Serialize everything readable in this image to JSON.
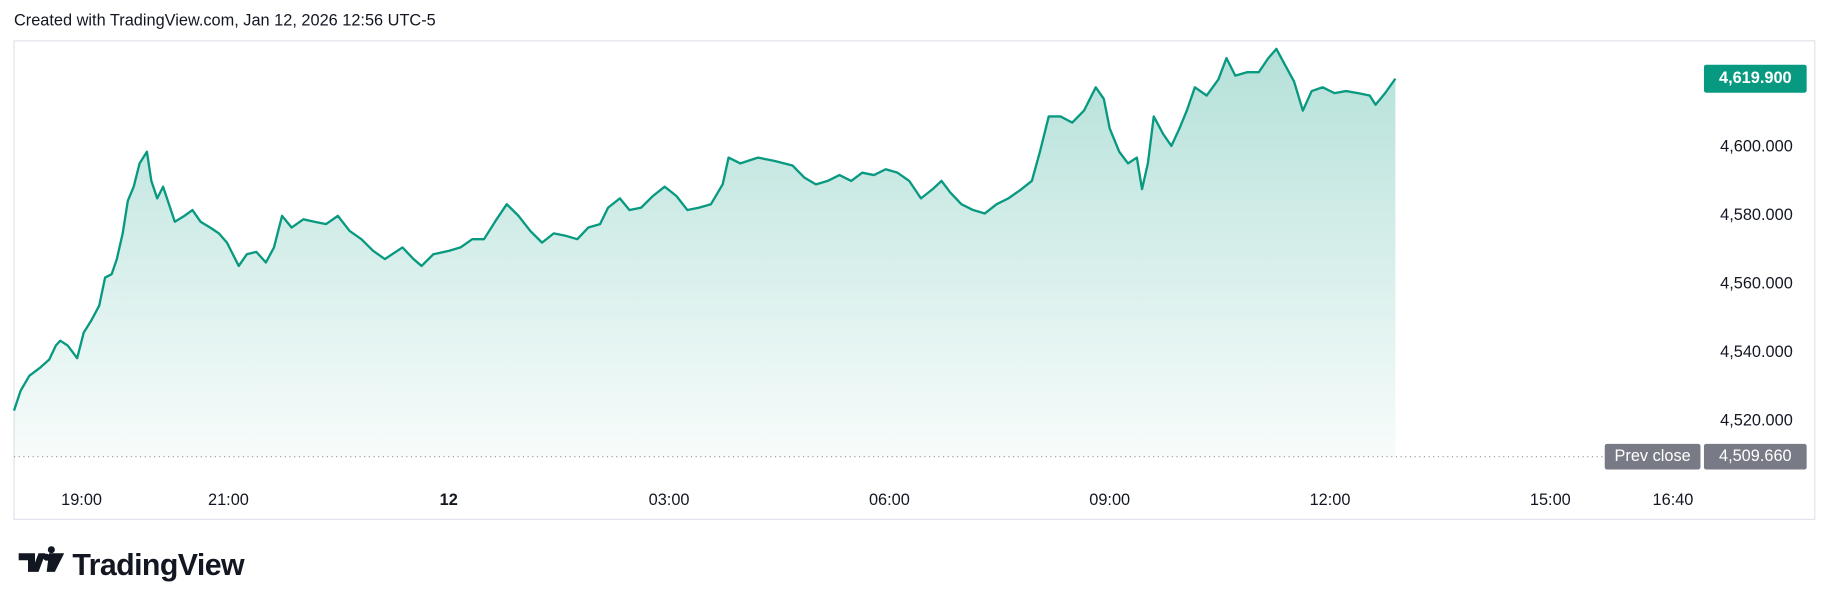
{
  "header": "Created with TradingView.com, Jan 12, 2026 12:56 UTC-5",
  "logo": "TradingView",
  "chart_data": {
    "type": "area",
    "color": "#089981",
    "xlim": [
      18.08,
      41.06
    ],
    "ylim": [
      4503.3,
      4630.6
    ],
    "xticks": [
      {
        "value": 19,
        "label": "19:00"
      },
      {
        "value": 21,
        "label": "21:00"
      },
      {
        "value": 24,
        "label": "12"
      },
      {
        "value": 27,
        "label": "03:00"
      },
      {
        "value": 30,
        "label": "06:00"
      },
      {
        "value": 33,
        "label": "09:00"
      },
      {
        "value": 36,
        "label": "12:00"
      },
      {
        "value": 39,
        "label": "15:00"
      },
      {
        "value": 40.67,
        "label": "16:40"
      }
    ],
    "yticks": [
      {
        "value": 4520,
        "label": "4,520.000"
      },
      {
        "value": 4540,
        "label": "4,540.000"
      },
      {
        "value": 4560,
        "label": "4,560.000"
      },
      {
        "value": 4580,
        "label": "4,580.000"
      },
      {
        "value": 4600,
        "label": "4,600.000"
      }
    ],
    "last_price": {
      "value": 4619.9,
      "label": "4,619.900"
    },
    "prev_close": {
      "name": "Prev close",
      "value": 4509.66,
      "label": "4,509.660"
    },
    "x": [
      18.08,
      18.17,
      18.29,
      18.44,
      18.56,
      18.65,
      18.71,
      18.81,
      18.94,
      19.03,
      19.13,
      19.24,
      19.32,
      19.41,
      19.48,
      19.56,
      19.63,
      19.71,
      19.79,
      19.89,
      19.95,
      20.03,
      20.11,
      20.19,
      20.27,
      20.4,
      20.51,
      20.62,
      20.75,
      20.87,
      20.98,
      21.06,
      21.14,
      21.25,
      21.38,
      21.51,
      21.62,
      21.73,
      21.86,
      22.02,
      22.17,
      22.33,
      22.49,
      22.65,
      22.81,
      22.97,
      23.13,
      23.37,
      23.52,
      23.63,
      23.79,
      24.0,
      24.16,
      24.32,
      24.48,
      24.63,
      24.79,
      24.95,
      25.11,
      25.27,
      25.43,
      25.59,
      25.75,
      25.9,
      26.06,
      26.17,
      26.33,
      26.46,
      26.62,
      26.78,
      26.94,
      27.1,
      27.25,
      27.41,
      27.57,
      27.73,
      27.81,
      27.97,
      28.21,
      28.44,
      28.68,
      28.84,
      29.0,
      29.16,
      29.32,
      29.48,
      29.63,
      29.79,
      29.95,
      30.11,
      30.27,
      30.43,
      30.59,
      30.71,
      30.83,
      30.98,
      31.14,
      31.3,
      31.46,
      31.62,
      31.78,
      31.94,
      32.05,
      32.17,
      32.33,
      32.49,
      32.65,
      32.81,
      32.92,
      33.0,
      33.13,
      33.25,
      33.37,
      33.44,
      33.52,
      33.6,
      33.73,
      33.84,
      33.95,
      34.05,
      34.16,
      34.32,
      34.48,
      34.59,
      34.71,
      34.87,
      35.03,
      35.16,
      35.27,
      35.38,
      35.51,
      35.63,
      35.75,
      35.9,
      36.06,
      36.22,
      36.38,
      36.54,
      36.62,
      36.75,
      36.89
    ],
    "values": [
      4523.1,
      4528.9,
      4533.3,
      4535.7,
      4538.0,
      4542.1,
      4543.5,
      4542.1,
      4538.4,
      4545.9,
      4549.3,
      4553.7,
      4561.9,
      4562.9,
      4567.3,
      4574.8,
      4584.3,
      4588.4,
      4595.2,
      4598.6,
      4590.1,
      4585.0,
      4588.4,
      4583.3,
      4578.2,
      4579.9,
      4581.6,
      4578.2,
      4576.5,
      4574.8,
      4572.1,
      4568.7,
      4565.3,
      4568.7,
      4569.4,
      4566.3,
      4570.7,
      4579.9,
      4576.5,
      4578.9,
      4578.2,
      4577.5,
      4579.9,
      4575.5,
      4573.1,
      4569.7,
      4567.3,
      4570.7,
      4567.3,
      4565.3,
      4568.7,
      4569.7,
      4570.7,
      4573.1,
      4573.1,
      4578.2,
      4583.3,
      4579.9,
      4575.5,
      4572.1,
      4574.8,
      4574.1,
      4573.1,
      4576.5,
      4577.5,
      4582.3,
      4585.0,
      4581.6,
      4582.3,
      4585.7,
      4588.4,
      4585.7,
      4581.6,
      4582.3,
      4583.3,
      4589.1,
      4596.9,
      4595.2,
      4596.9,
      4595.9,
      4594.6,
      4591.1,
      4589.1,
      4590.1,
      4591.8,
      4590.1,
      4592.5,
      4591.8,
      4593.5,
      4592.5,
      4590.1,
      4585.0,
      4587.7,
      4590.1,
      4586.7,
      4583.3,
      4581.6,
      4580.6,
      4583.3,
      4585.0,
      4587.4,
      4590.1,
      4598.6,
      4608.9,
      4608.9,
      4607.1,
      4610.6,
      4617.4,
      4614.0,
      4605.4,
      4598.6,
      4595.2,
      4596.9,
      4587.7,
      4595.2,
      4608.9,
      4603.7,
      4600.3,
      4605.4,
      4610.6,
      4617.4,
      4615.0,
      4619.7,
      4625.9,
      4620.8,
      4621.8,
      4621.8,
      4625.9,
      4628.6,
      4624.2,
      4619.1,
      4610.6,
      4616.3,
      4617.4,
      4615.7,
      4616.3,
      4615.7,
      4615.0,
      4612.3,
      4615.7,
      4619.9
    ]
  }
}
